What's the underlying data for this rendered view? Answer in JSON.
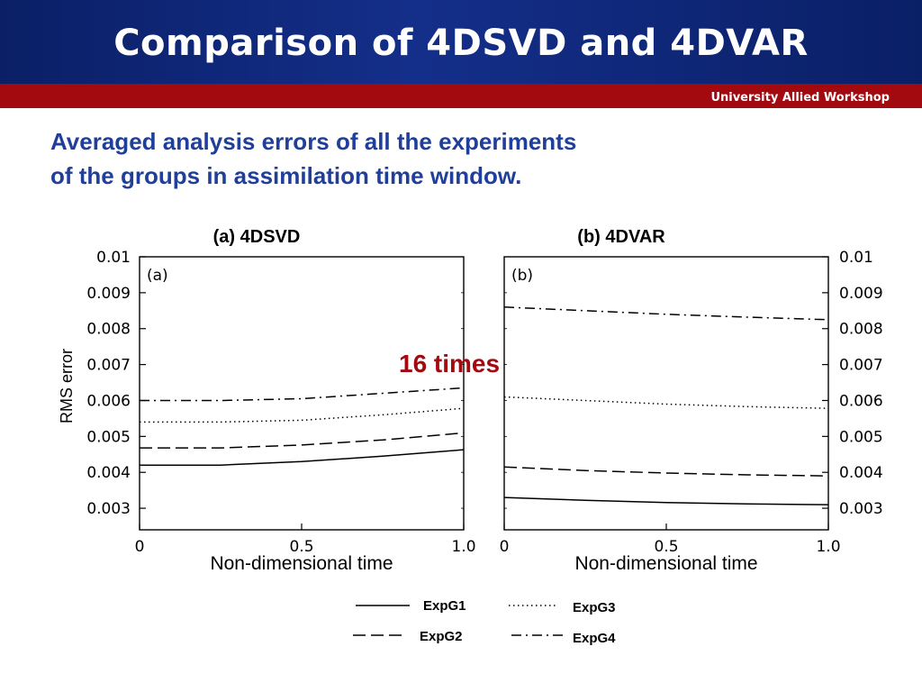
{
  "slide": {
    "title": "Comparison of 4DSVD and 4DVAR",
    "workshop": "University Allied Workshop",
    "subtitle_lines": [
      "Averaged analysis errors of all the experiments",
      "of the groups in assimilation time window."
    ],
    "annotation": "16 times",
    "colors": {
      "header": "#0a1f66",
      "band": "#a30a10",
      "subtitle": "#1f3f9a",
      "annotation": "#a30a10"
    }
  },
  "chart_data": [
    {
      "type": "line",
      "title": "(a) 4DSVD",
      "inner_label": "(a)",
      "xlabel": "Non-dimensional time",
      "ylabel": "RMS error",
      "xlim": [
        0,
        1
      ],
      "ylim": [
        0.0024,
        0.01
      ],
      "xticks": [
        0,
        0.5,
        1.0
      ],
      "xtick_labels": [
        "0",
        "0.5",
        "1.0"
      ],
      "yticks": [
        0.003,
        0.004,
        0.005,
        0.006,
        0.007,
        0.008,
        0.009,
        0.01
      ],
      "ytick_labels": [
        "0.003",
        "0.004",
        "0.005",
        "0.006",
        "0.007",
        "0.008",
        "0.009",
        "0.01"
      ],
      "y_axis_side": "left",
      "x": [
        0,
        0.25,
        0.5,
        0.75,
        1.0
      ],
      "series": [
        {
          "name": "ExpG1",
          "style": "solid",
          "values": [
            0.0042,
            0.0042,
            0.0043,
            0.00445,
            0.00463
          ]
        },
        {
          "name": "ExpG2",
          "style": "dashed",
          "values": [
            0.00468,
            0.00468,
            0.00476,
            0.0049,
            0.0051
          ]
        },
        {
          "name": "ExpG3",
          "style": "dotted",
          "values": [
            0.0054,
            0.0054,
            0.00545,
            0.0056,
            0.00578
          ]
        },
        {
          "name": "ExpG4",
          "style": "dashdot",
          "values": [
            0.006,
            0.006,
            0.00605,
            0.0062,
            0.00635
          ]
        }
      ]
    },
    {
      "type": "line",
      "title": "(b) 4DVAR",
      "inner_label": "(b)",
      "xlabel": "Non-dimensional time",
      "ylabel": "",
      "xlim": [
        0,
        1
      ],
      "ylim": [
        0.0024,
        0.01
      ],
      "xticks": [
        0,
        0.5,
        1.0
      ],
      "xtick_labels": [
        "0",
        "0.5",
        "1.0"
      ],
      "yticks": [
        0.003,
        0.004,
        0.005,
        0.006,
        0.007,
        0.008,
        0.009,
        0.01
      ],
      "ytick_labels": [
        "0.003",
        "0.004",
        "0.005",
        "0.006",
        "0.007",
        "0.008",
        "0.009",
        "0.01"
      ],
      "y_axis_side": "right",
      "x": [
        0,
        0.25,
        0.5,
        0.75,
        1.0
      ],
      "series": [
        {
          "name": "ExpG1",
          "style": "solid",
          "values": [
            0.0033,
            0.00322,
            0.00316,
            0.00312,
            0.0031
          ]
        },
        {
          "name": "ExpG2",
          "style": "dashed",
          "values": [
            0.00415,
            0.00405,
            0.00398,
            0.00393,
            0.0039
          ]
        },
        {
          "name": "ExpG3",
          "style": "dotted",
          "values": [
            0.0061,
            0.006,
            0.0059,
            0.00583,
            0.00578
          ]
        },
        {
          "name": "ExpG4",
          "style": "dashdot",
          "values": [
            0.0086,
            0.0085,
            0.0084,
            0.00832,
            0.00825
          ]
        }
      ]
    }
  ],
  "legend": [
    {
      "name": "ExpG1",
      "style": "solid"
    },
    {
      "name": "ExpG3",
      "style": "dotted"
    },
    {
      "name": "ExpG2",
      "style": "dashed"
    },
    {
      "name": "ExpG4",
      "style": "dashdot"
    }
  ]
}
